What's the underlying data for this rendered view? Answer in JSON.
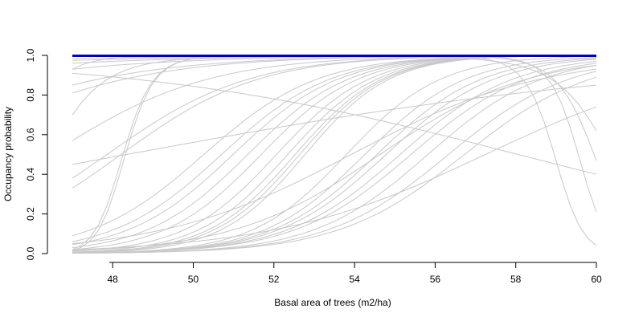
{
  "chart_data": {
    "type": "line",
    "title": "",
    "xlabel": "Basal area of trees (m2/ha)",
    "ylabel": "Occupancy probability",
    "xlim": [
      46.9,
      60
    ],
    "ylim": [
      0,
      1
    ],
    "x_ticks": [
      "48",
      "50",
      "52",
      "54",
      "56",
      "58",
      "60"
    ],
    "y_ticks": [
      "0.0",
      "0.2",
      "0.4",
      "0.6",
      "0.8",
      "1.0"
    ],
    "grid": false,
    "legend": "none",
    "colors": {
      "draws": "#c8c8c8",
      "mean": "#0000aa"
    },
    "series": [
      {
        "kind": "logistic",
        "x0": 47.0,
        "x1": 60.0,
        "y0": 0.57,
        "y1": 0.999
      },
      {
        "kind": "logistic",
        "x0": 47.0,
        "x1": 60.0,
        "y0": 0.38,
        "y1": 0.999
      },
      {
        "kind": "logistic",
        "x0": 47.0,
        "x1": 60.0,
        "y0": 0.33,
        "y1": 0.999
      },
      {
        "kind": "logistic",
        "x0": 47.0,
        "x1": 60.0,
        "y0": 0.09,
        "y1": 0.999
      },
      {
        "kind": "logistic",
        "x0": 47.0,
        "x1": 60.0,
        "y0": 0.06,
        "y1": 0.999
      },
      {
        "kind": "logistic",
        "x0": 47.0,
        "x1": 60.0,
        "y0": 0.81,
        "y1": 0.999
      },
      {
        "kind": "logistic",
        "x0": 47.0,
        "x1": 60.0,
        "y0": 0.85,
        "y1": 0.999
      },
      {
        "kind": "logistic",
        "x0": 47.0,
        "x1": 60.0,
        "y0": 0.93,
        "y1": 0.999
      },
      {
        "kind": "logistic",
        "x0": 47.0,
        "x1": 60.0,
        "y0": 0.96,
        "y1": 0.999
      },
      {
        "kind": "logistic",
        "x0": 47.0,
        "x1": 60.0,
        "y0": 0.975,
        "y1": 0.999
      },
      {
        "kind": "logistic",
        "x0": 47.0,
        "x1": 60.0,
        "y0": 0.985,
        "y1": 0.999
      },
      {
        "kind": "logistic",
        "x0": 47.0,
        "x1": 60.0,
        "y0": 0.45,
        "y1": 0.85
      },
      {
        "kind": "logistic",
        "x0": 47.0,
        "x1": 60.0,
        "y0": 0.91,
        "y1": 0.4
      },
      {
        "kind": "logistic",
        "x0": 47.0,
        "x1": 60.0,
        "y0": 0.045,
        "y1": 0.999
      },
      {
        "kind": "logistic",
        "x0": 47.0,
        "x1": 60.0,
        "y0": 0.03,
        "y1": 0.999
      },
      {
        "kind": "logistic",
        "x0": 47.0,
        "x1": 60.0,
        "y0": 0.02,
        "y1": 0.999
      },
      {
        "kind": "logistic",
        "x0": 47.0,
        "x1": 60.0,
        "y0": 0.012,
        "y1": 0.999
      },
      {
        "kind": "logistic",
        "x0": 47.0,
        "x1": 60.0,
        "y0": 0.008,
        "y1": 0.999
      },
      {
        "kind": "logistic",
        "x0": 47.0,
        "x1": 60.0,
        "y0": 0.006,
        "y1": 0.999
      },
      {
        "kind": "logistic",
        "x0": 47.0,
        "x1": 60.0,
        "y0": 0.005,
        "y1": 0.999
      },
      {
        "kind": "logistic",
        "x0": 47.0,
        "x1": 60.0,
        "y0": 0.004,
        "y1": 0.999
      },
      {
        "kind": "logistic",
        "x0": 47.0,
        "x1": 60.0,
        "y0": 0.003,
        "y1": 0.995
      },
      {
        "kind": "logistic",
        "x0": 47.0,
        "x1": 60.0,
        "y0": 0.003,
        "y1": 0.99
      },
      {
        "kind": "logistic",
        "x0": 47.0,
        "x1": 60.0,
        "y0": 0.003,
        "y1": 0.985
      },
      {
        "kind": "logistic",
        "x0": 47.0,
        "x1": 60.0,
        "y0": 0.003,
        "y1": 0.98
      },
      {
        "kind": "logistic",
        "x0": 47.0,
        "x1": 60.0,
        "y0": 0.003,
        "y1": 0.97
      },
      {
        "kind": "logistic",
        "x0": 47.0,
        "x1": 60.0,
        "y0": 0.003,
        "y1": 0.96
      },
      {
        "kind": "logistic",
        "x0": 47.0,
        "x1": 60.0,
        "y0": 0.002,
        "y1": 0.95
      },
      {
        "kind": "logistic",
        "x0": 47.0,
        "x1": 60.0,
        "y0": 0.002,
        "y1": 0.92
      },
      {
        "kind": "logistic",
        "x0": 47.0,
        "x1": 60.0,
        "y0": 0.002,
        "y1": 0.89
      },
      {
        "kind": "logistic",
        "x0": 47.0,
        "x1": 60.0,
        "y0": 0.05,
        "y1": 0.93
      },
      {
        "kind": "logistic",
        "x0": 47.0,
        "x1": 60.0,
        "y0": 0.02,
        "y1": 0.74
      },
      {
        "kind": "logistic",
        "x0": 47.0,
        "x1": 60.0,
        "y0": 0.015,
        "y1": 0.95
      },
      {
        "kind": "quad",
        "x0": 47.0,
        "xpeak": 55.0,
        "x1": 60.0,
        "y0": 0.02,
        "ypeak": 0.999,
        "y1": 0.04
      },
      {
        "kind": "quad",
        "x0": 47.0,
        "xpeak": 56.0,
        "x1": 60.0,
        "y0": 0.015,
        "ypeak": 0.999,
        "y1": 0.21
      },
      {
        "kind": "quad",
        "x0": 47.0,
        "xpeak": 54.0,
        "x1": 60.0,
        "y0": 0.7,
        "ypeak": 0.995,
        "y1": 0.62
      },
      {
        "kind": "quad",
        "x0": 47.0,
        "xpeak": 55.0,
        "x1": 60.0,
        "y0": 0.93,
        "ypeak": 0.999,
        "y1": 0.47
      },
      {
        "kind": "mean",
        "x0": 47.0,
        "x1": 60.0,
        "y0": 0.998,
        "y1": 0.998
      }
    ]
  }
}
